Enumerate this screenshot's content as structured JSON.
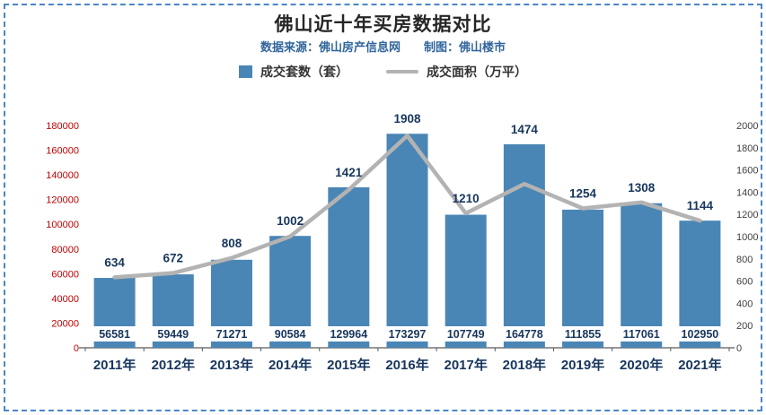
{
  "frame": {
    "border_color": "#4a86c8",
    "background": "#ffffff"
  },
  "header": {
    "title": "佛山近十年买房数据对比",
    "subtitle_source": "数据来源：佛山房产信息网",
    "subtitle_maker": "制图：佛山楼市"
  },
  "legend": [
    {
      "label": "成交套数（套）",
      "type": "bar",
      "color": "#4a86b5"
    },
    {
      "label": "成交面积（万平）",
      "type": "line",
      "color": "#b3b3b3"
    }
  ],
  "chart_data": {
    "type": "bar",
    "title": "佛山近十年买房数据对比",
    "categories": [
      "2011年",
      "2012年",
      "2013年",
      "2014年",
      "2015年",
      "2016年",
      "2017年",
      "2018年",
      "2019年",
      "2020年",
      "2021年"
    ],
    "series": [
      {
        "name": "成交套数（套）",
        "type": "bar",
        "axis": "left",
        "color": "#4a86b5",
        "values": [
          56581,
          59449,
          71271,
          90584,
          129964,
          173297,
          107749,
          164778,
          111855,
          117061,
          102950
        ]
      },
      {
        "name": "成交面积（万平）",
        "type": "line",
        "axis": "right",
        "color": "#b3b3b3",
        "values": [
          634,
          672,
          808,
          1002,
          1421,
          1908,
          1210,
          1474,
          1254,
          1308,
          1144
        ]
      }
    ],
    "left_axis": {
      "min": 0,
      "max": 180000,
      "step": 20000,
      "label_color": "#c00000"
    },
    "right_axis": {
      "min": 0,
      "max": 2000,
      "step": 200,
      "label_color": "#404040"
    },
    "grid": false,
    "legend_position": "top",
    "bar_label_color": "#17365d",
    "line_label_color": "#17365d",
    "category_label_color": "#17365d",
    "axis_line_color": "#595959"
  }
}
